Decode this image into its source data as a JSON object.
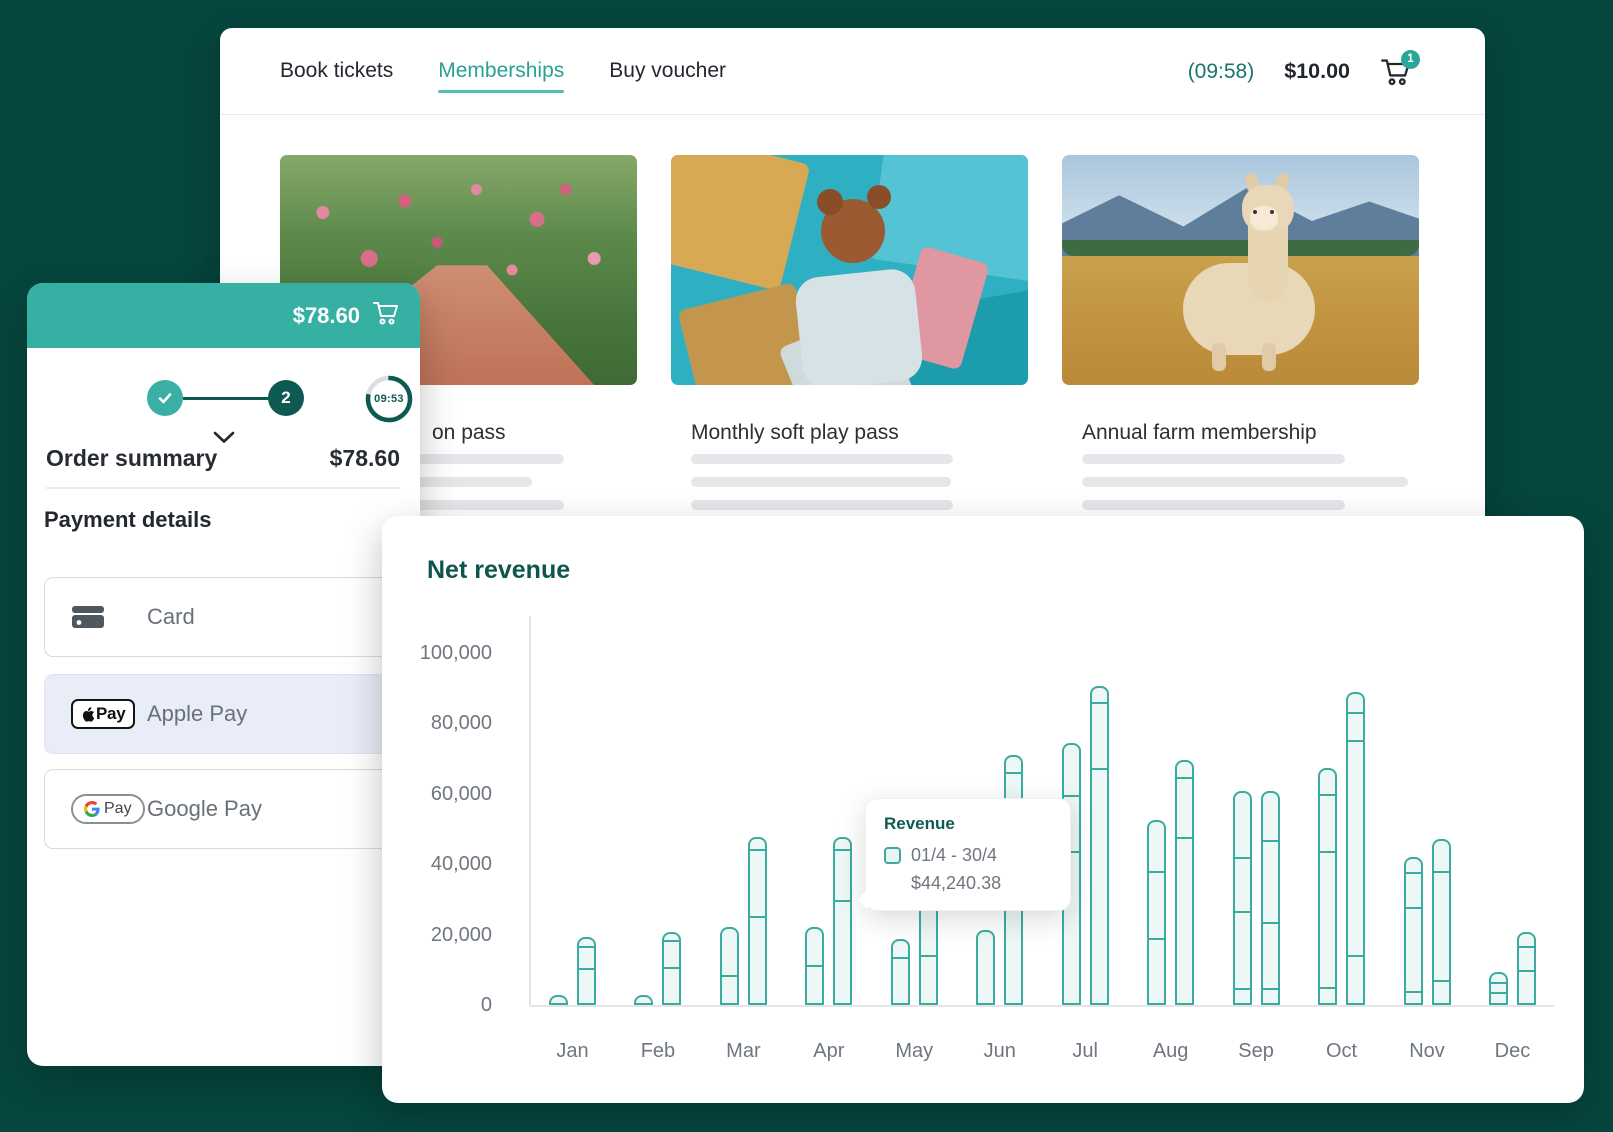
{
  "nav": {
    "tabs": [
      {
        "label": "Book tickets",
        "active": false
      },
      {
        "label": "Memberships",
        "active": true
      },
      {
        "label": "Buy voucher",
        "active": false
      }
    ],
    "timer_label": "(09:58)",
    "cart_total": "$10.00",
    "cart_count": "1"
  },
  "products": [
    {
      "title": "on pass",
      "image": "garden-path",
      "title_partially_hidden": true
    },
    {
      "title": "Monthly soft play pass",
      "image": "soft-play-blocks"
    },
    {
      "title": "Annual farm membership",
      "image": "alpaca-field"
    }
  ],
  "order_panel": {
    "cart_total": "$78.60",
    "step_done": "check",
    "step_current": "2",
    "timer": "09:53",
    "summary": {
      "label": "Order summary",
      "amount": "$78.60"
    },
    "payment": {
      "heading": "Payment details",
      "methods": [
        {
          "label": "Card",
          "icon": "credit-card",
          "selected": false
        },
        {
          "label": "Apple Pay",
          "icon": "apple-pay-badge",
          "badge_text": "Pay",
          "selected": true
        },
        {
          "label": "Google Pay",
          "icon": "google-pay-badge",
          "badge_text": "Pay",
          "selected": false
        }
      ]
    }
  },
  "chart_data": {
    "type": "bar",
    "title": "Net revenue",
    "xlabel": "",
    "ylabel": "",
    "ylim": [
      0,
      100000
    ],
    "grid": false,
    "legend": "none",
    "unit": "USD",
    "yticks": [
      {
        "value": 100000,
        "label": "100,000"
      },
      {
        "value": 80000,
        "label": "80,000"
      },
      {
        "value": 60000,
        "label": "60,000"
      },
      {
        "value": 40000,
        "label": "40,000"
      },
      {
        "value": 20000,
        "label": "20,000"
      },
      {
        "value": 0,
        "label": "0"
      }
    ],
    "months": [
      {
        "label": "Jan",
        "bars": [
          {
            "total": 2800,
            "dividers": []
          },
          {
            "total": 19300,
            "dividers": [
              9900,
              16500
            ]
          }
        ]
      },
      {
        "label": "Feb",
        "bars": [
          {
            "total": 2800,
            "dividers": []
          },
          {
            "total": 20700,
            "dividers": [
              10200,
              18200
            ]
          }
        ]
      },
      {
        "label": "Mar",
        "bars": [
          {
            "total": 22200,
            "dividers": [
              7700
            ]
          },
          {
            "total": 47700,
            "dividers": [
              24700,
              44300
            ]
          }
        ]
      },
      {
        "label": "Apr",
        "bars": [
          {
            "total": 22200,
            "dividers": [
              10800
            ]
          },
          {
            "total": 47700,
            "dividers": [
              29500,
              44240
            ]
          }
        ]
      },
      {
        "label": "May",
        "bars": [
          {
            "total": 18700,
            "dividers": [
              13400
            ]
          },
          {
            "total": 30000,
            "dividers": [
              13600
            ]
          }
        ]
      },
      {
        "label": "Jun",
        "bars": [
          {
            "total": 21300,
            "dividers": []
          },
          {
            "total": 71000,
            "dividers": [
              66200
            ]
          }
        ]
      },
      {
        "label": "Jul",
        "bars": [
          {
            "total": 74500,
            "dividers": [
              43200,
              59400
            ]
          },
          {
            "total": 90600,
            "dividers": [
              67000,
              86100
            ]
          }
        ]
      },
      {
        "label": "Aug",
        "bars": [
          {
            "total": 52500,
            "dividers": [
              18200,
              37800
            ]
          },
          {
            "total": 69600,
            "dividers": [
              47400,
              64800
            ]
          }
        ]
      },
      {
        "label": "Sep",
        "bars": [
          {
            "total": 60800,
            "dividers": [
              3700,
              26000,
              41700
            ]
          },
          {
            "total": 60800,
            "dividers": [
              3700,
              23000,
              46600
            ]
          }
        ]
      },
      {
        "label": "Oct",
        "bars": [
          {
            "total": 67300,
            "dividers": [
              4000,
              43200,
              59900
            ]
          },
          {
            "total": 88900,
            "dividers": [
              13300,
              75000,
              83200
            ]
          }
        ]
      },
      {
        "label": "Nov",
        "bars": [
          {
            "total": 42000,
            "dividers": [
              2800,
              27500,
              37500
            ]
          },
          {
            "total": 47100,
            "dividers": [
              6200,
              37800
            ]
          }
        ]
      },
      {
        "label": "Dec",
        "bars": [
          {
            "total": 9400,
            "dividers": [
              2800,
              6200
            ]
          },
          {
            "total": 20700,
            "dividers": [
              9400,
              16500
            ]
          }
        ]
      }
    ],
    "tooltip": {
      "title": "Revenue",
      "range": "01/4 - 30/4",
      "value": "$44,240.38",
      "anchor_month": "Apr"
    }
  },
  "colors": {
    "background": "#06463E",
    "accent_teal": "#35B0A2",
    "accent_teal_dark": "#0E5A52",
    "active_tab": "#2AA195",
    "bar_stroke": "#3CAB9F",
    "bar_fill": "#EDF7F5",
    "text_dark": "#23272F",
    "text_gray": "#6F7680",
    "border_gray": "#D6D9DE",
    "skeleton": "#E4E6E9",
    "selected_method_bg": "#E9EDF8"
  }
}
